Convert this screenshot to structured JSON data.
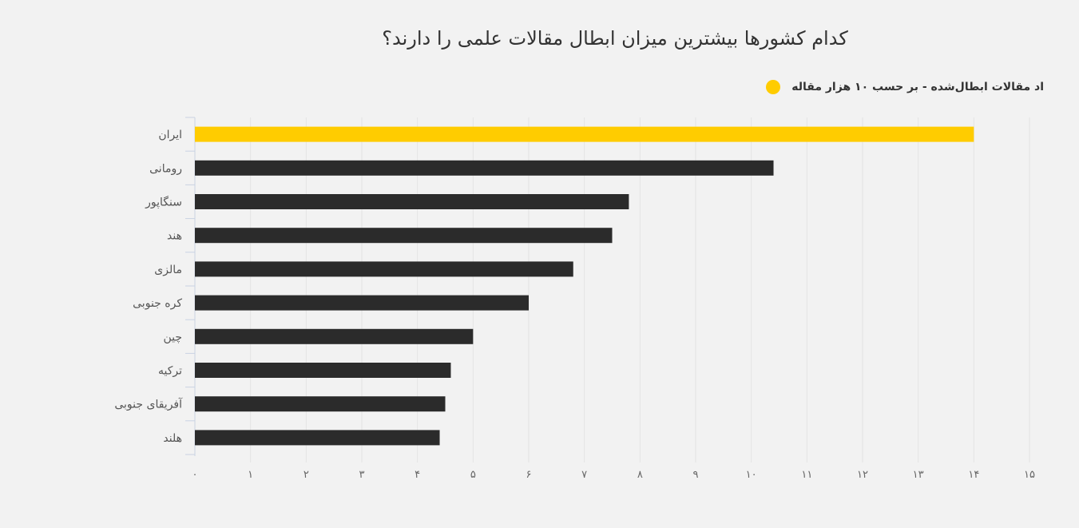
{
  "chart_data": {
    "type": "bar",
    "orientation": "horizontal",
    "title": "کدام کشورها بیشترین میزان ابطال مقالات علمی را دارند؟",
    "categories": [
      "ایران",
      "رومانی",
      "سنگاپور",
      "هند",
      "مالزی",
      "کره جنوبی",
      "چین",
      "ترکیه",
      "آفریقای جنوبی",
      "هلند"
    ],
    "series": [
      {
        "name": "اد مقالات ابطال‌شده - بر حسب ۱۰ هزار مقاله",
        "values": [
          14,
          10.4,
          7.8,
          7.5,
          6.8,
          6.0,
          5.0,
          4.6,
          4.5,
          4.4
        ]
      }
    ],
    "xlim": [
      0,
      15
    ],
    "xticks": [
      "۰",
      "۱",
      "۲",
      "۳",
      "۴",
      "۵",
      "۶",
      "۷",
      "۸",
      "۹",
      "۱۰",
      "۱۱",
      "۱۲",
      "۱۳",
      "۱۴",
      "۱۵"
    ],
    "grid": true,
    "legend_position": "top-right",
    "colors": {
      "highlight": "#ffcc00",
      "bar": "#2b2b2b",
      "grid": "#e3e3e3",
      "axis": "#c9d3e3"
    }
  }
}
